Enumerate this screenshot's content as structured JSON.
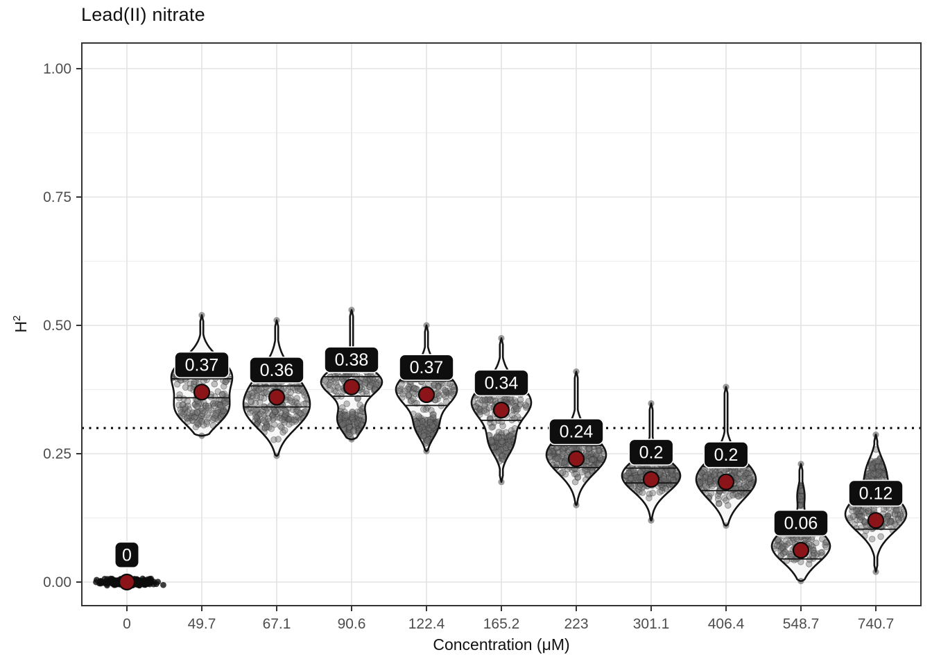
{
  "header": {
    "title": "Lead(II) nitrate"
  },
  "axes": {
    "x": {
      "label": "Concentration (μM)"
    },
    "y": {
      "label_base": "H",
      "label_sup": "2"
    }
  },
  "colors": {
    "median_point": "#8b1418",
    "median_point_stroke": "#0a0a0a",
    "label_bg": "#0e0e0e",
    "label_border": "#ffffff",
    "label_text": "#ffffff",
    "violin_stroke": "#141414",
    "violin_fill": "#f7f7f7",
    "jitter_fill": "#737373",
    "jitter_stroke": "#2e2e2e",
    "grid_major": "#e3e3e3",
    "grid_minor": "#efefef",
    "axis_text": "#4d4d4d",
    "panel_border": "#333333",
    "reference_line": "#000000"
  },
  "chart_data": {
    "type": "violin",
    "title": "Lead(II) nitrate",
    "xlabel": "Concentration (μM)",
    "ylabel": "H^2",
    "ylim": [
      -0.046,
      1.05
    ],
    "ytick_values": [
      0,
      0.25,
      0.5,
      0.75,
      1.0
    ],
    "ytick_labels": [
      "0.00",
      "0.25",
      "0.50",
      "0.75",
      "1.00"
    ],
    "yminor_values": [
      0.125,
      0.375,
      0.625,
      0.875
    ],
    "reference_hline": 0.3,
    "grid": true,
    "legend": false,
    "categories": [
      "0",
      "49.7",
      "67.1",
      "90.6",
      "122.4",
      "165.2",
      "223",
      "301.1",
      "406.4",
      "548.7",
      "740.7"
    ],
    "groups": [
      {
        "category": "0",
        "label": "0",
        "median": 0.0,
        "q1": 0.0,
        "q3": 0.0,
        "min": -0.004,
        "max": 0.004,
        "flat": true,
        "modes": [
          [
            0.0,
            0.002,
            1
          ]
        ],
        "spread": 55
      },
      {
        "category": "49.7",
        "label": "0.37",
        "median": 0.37,
        "q1": 0.359,
        "q3": 0.396,
        "min": 0.285,
        "max": 0.52,
        "flat": false,
        "modes": [
          [
            0.405,
            0.032,
            1
          ],
          [
            0.335,
            0.03,
            0.85
          ]
        ],
        "spread": 44
      },
      {
        "category": "67.1",
        "label": "0.36",
        "median": 0.36,
        "q1": 0.341,
        "q3": 0.382,
        "min": 0.246,
        "max": 0.51,
        "flat": false,
        "modes": [
          [
            0.372,
            0.042,
            1
          ],
          [
            0.322,
            0.033,
            0.7
          ]
        ],
        "spread": 48
      },
      {
        "category": "90.6",
        "label": "0.38",
        "median": 0.38,
        "q1": 0.362,
        "q3": 0.4,
        "min": 0.278,
        "max": 0.53,
        "flat": false,
        "modes": [
          [
            0.39,
            0.027,
            1
          ],
          [
            0.315,
            0.024,
            0.45
          ]
        ],
        "spread": 44
      },
      {
        "category": "122.4",
        "label": "0.37",
        "median": 0.365,
        "q1": 0.344,
        "q3": 0.392,
        "min": 0.255,
        "max": 0.5,
        "flat": false,
        "modes": [
          [
            0.375,
            0.034,
            1
          ],
          [
            0.3,
            0.022,
            0.3
          ]
        ],
        "spread": 44
      },
      {
        "category": "165.2",
        "label": "0.34",
        "median": 0.335,
        "q1": 0.315,
        "q3": 0.365,
        "min": 0.195,
        "max": 0.475,
        "flat": false,
        "modes": [
          [
            0.35,
            0.036,
            1
          ],
          [
            0.27,
            0.025,
            0.35
          ]
        ],
        "spread": 43
      },
      {
        "category": "223",
        "label": "0.24",
        "median": 0.24,
        "q1": 0.223,
        "q3": 0.266,
        "min": 0.15,
        "max": 0.41,
        "flat": false,
        "modes": [
          [
            0.248,
            0.036,
            1
          ]
        ],
        "spread": 43
      },
      {
        "category": "301.1",
        "label": "0.2",
        "median": 0.2,
        "q1": 0.193,
        "q3": 0.222,
        "min": 0.12,
        "max": 0.348,
        "flat": false,
        "modes": [
          [
            0.207,
            0.031,
            1
          ]
        ],
        "spread": 42
      },
      {
        "category": "406.4",
        "label": "0.2",
        "median": 0.195,
        "q1": 0.178,
        "q3": 0.225,
        "min": 0.11,
        "max": 0.38,
        "flat": false,
        "modes": [
          [
            0.2,
            0.038,
            1
          ]
        ],
        "spread": 43
      },
      {
        "category": "548.7",
        "label": "0.06",
        "median": 0.062,
        "q1": 0.045,
        "q3": 0.09,
        "min": 0.002,
        "max": 0.23,
        "flat": false,
        "modes": [
          [
            0.07,
            0.032,
            1
          ],
          [
            0.17,
            0.02,
            0.12
          ]
        ],
        "spread": 42
      },
      {
        "category": "740.7",
        "label": "0.12",
        "median": 0.12,
        "q1": 0.103,
        "q3": 0.152,
        "min": 0.02,
        "max": 0.287,
        "flat": false,
        "modes": [
          [
            0.132,
            0.034,
            1
          ],
          [
            0.215,
            0.028,
            0.3
          ]
        ],
        "spread": 44
      }
    ]
  }
}
